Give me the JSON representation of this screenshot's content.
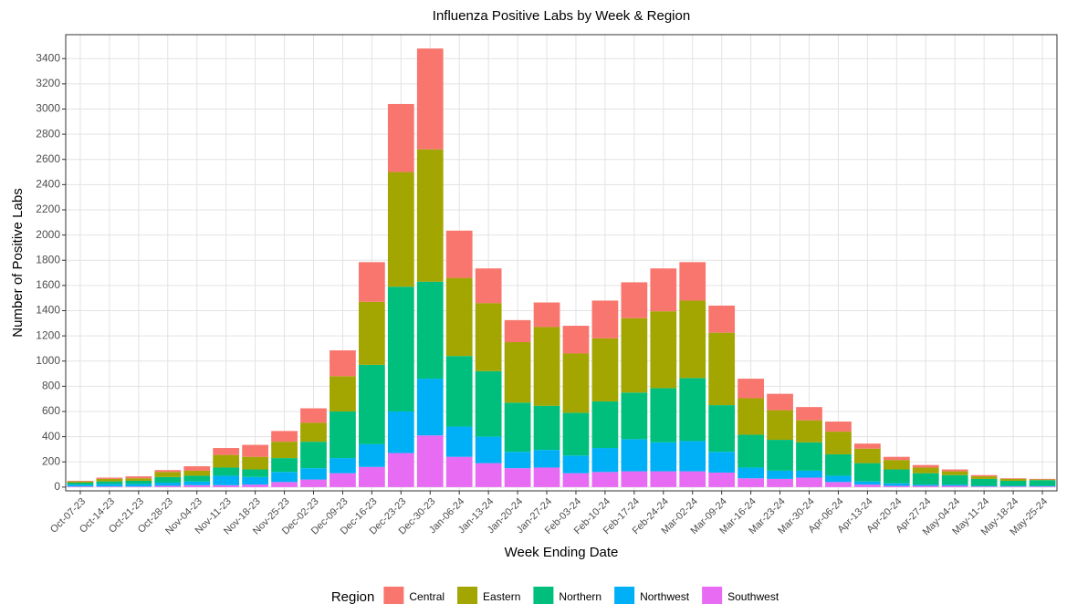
{
  "chart_data": {
    "type": "stacked_bar",
    "title": "Influenza Positive Labs by Week & Region",
    "x_label": "Week Ending Date",
    "y_label": "Number of Positive Labs",
    "legend_title": "Region",
    "legend_position": "bottom",
    "grid": true,
    "categories": [
      "Oct-07-23",
      "Oct-14-23",
      "Oct-21-23",
      "Oct-28-23",
      "Nov-04-23",
      "Nov-11-23",
      "Nov-18-23",
      "Nov-25-23",
      "Dec-02-23",
      "Dec-09-23",
      "Dec-16-23",
      "Dec-23-23",
      "Dec-30-23",
      "Jan-06-24",
      "Jan-13-24",
      "Jan-20-24",
      "Jan-27-24",
      "Feb-03-24",
      "Feb-10-24",
      "Feb-17-24",
      "Feb-24-24",
      "Mar-02-24",
      "Mar-09-24",
      "Mar-16-24",
      "Mar-23-24",
      "Mar-30-24",
      "Apr-06-24",
      "Apr-13-24",
      "Apr-20-24",
      "Apr-27-24",
      "May-04-24",
      "May-11-24",
      "May-18-24",
      "May-25-24"
    ],
    "series": [
      {
        "name": "Central",
        "color": "#F8766D",
        "values": [
          5,
          10,
          15,
          15,
          35,
          55,
          95,
          85,
          115,
          205,
          315,
          540,
          800,
          375,
          275,
          175,
          195,
          220,
          300,
          285,
          340,
          305,
          215,
          155,
          130,
          105,
          80,
          40,
          25,
          20,
          15,
          10,
          5,
          5
        ]
      },
      {
        "name": "Eastern",
        "color": "#A3A500",
        "values": [
          10,
          20,
          20,
          40,
          40,
          100,
          100,
          130,
          150,
          280,
          500,
          910,
          1050,
          620,
          540,
          480,
          625,
          470,
          500,
          590,
          610,
          615,
          575,
          290,
          235,
          175,
          180,
          115,
          75,
          45,
          30,
          20,
          15,
          5
        ]
      },
      {
        "name": "Northern",
        "color": "#00BF7D",
        "values": [
          15,
          20,
          25,
          45,
          45,
          65,
          60,
          110,
          210,
          370,
          630,
          990,
          770,
          560,
          520,
          390,
          350,
          340,
          370,
          370,
          430,
          500,
          370,
          260,
          245,
          225,
          170,
          145,
          110,
          90,
          75,
          55,
          40,
          45
        ]
      },
      {
        "name": "Northwest",
        "color": "#00B0F6",
        "values": [
          15,
          20,
          20,
          25,
          30,
          75,
          60,
          80,
          90,
          120,
          180,
          330,
          450,
          240,
          210,
          130,
          140,
          140,
          190,
          255,
          230,
          240,
          165,
          85,
          65,
          55,
          50,
          25,
          20,
          10,
          10,
          5,
          5,
          5
        ]
      },
      {
        "name": "Southwest",
        "color": "#E76BF3",
        "values": [
          5,
          5,
          5,
          10,
          15,
          15,
          20,
          40,
          60,
          110,
          160,
          270,
          410,
          240,
          190,
          150,
          155,
          110,
          120,
          125,
          125,
          125,
          115,
          70,
          65,
          75,
          40,
          20,
          10,
          10,
          10,
          5,
          5,
          5
        ]
      }
    ],
    "ylim": [
      -30,
      3590
    ],
    "yticks": [
      0,
      200,
      400,
      600,
      800,
      1000,
      1200,
      1400,
      1600,
      1800,
      2000,
      2200,
      2400,
      2600,
      2800,
      3000,
      3200,
      3400
    ]
  }
}
